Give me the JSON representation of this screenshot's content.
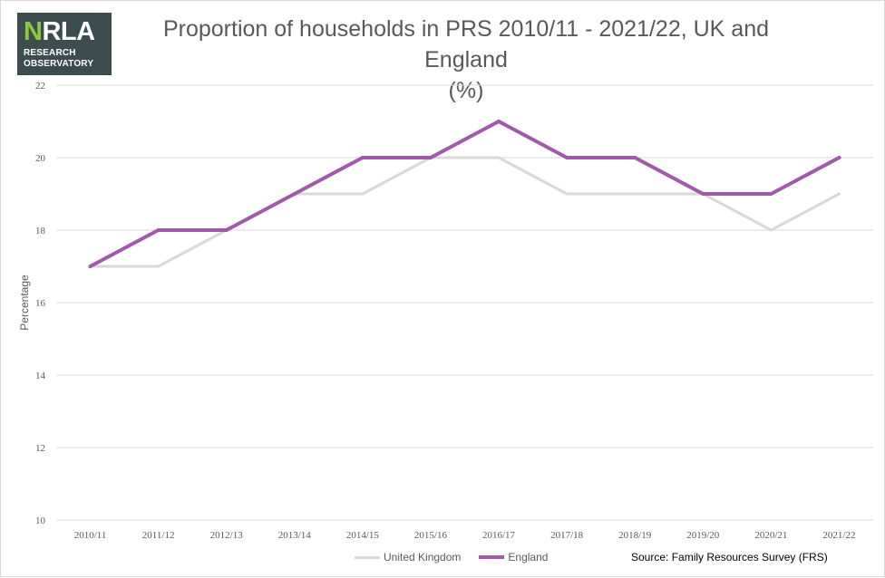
{
  "logo": {
    "word_first": "N",
    "word_rest": "RLA",
    "line1": "RESEARCH",
    "line2": "OBSERVATORY"
  },
  "source": "Source: Family Resources Survey (FRS)",
  "colors": {
    "united_kingdom": "#d9d9d9",
    "england": "#a05aa8",
    "grid": "#d9d9d9",
    "logo_bg": "#3d4d4f",
    "logo_accent": "#8dc63f"
  },
  "chart_data": {
    "type": "line",
    "title": "Proportion of households in PRS 2010/11 - 2021/22, UK and England",
    "subtitle": "(%)",
    "xlabel": "",
    "ylabel": "Percentage",
    "ylim": [
      10,
      22
    ],
    "yticks": [
      10,
      12,
      14,
      16,
      18,
      20,
      22
    ],
    "grid": true,
    "legend_position": "bottom",
    "categories": [
      "2010/11",
      "2011/12",
      "2012/13",
      "2013/14",
      "2014/15",
      "2015/16",
      "2016/17",
      "2017/18",
      "2018/19",
      "2019/20",
      "2020/21",
      "2021/22"
    ],
    "series": [
      {
        "name": "United Kingdom",
        "values": [
          17,
          17,
          18,
          19,
          19,
          20,
          20,
          19,
          19,
          19,
          18,
          19
        ]
      },
      {
        "name": "England",
        "values": [
          17,
          18,
          18,
          19,
          20,
          20,
          21,
          20,
          20,
          19,
          19,
          20
        ]
      }
    ]
  }
}
